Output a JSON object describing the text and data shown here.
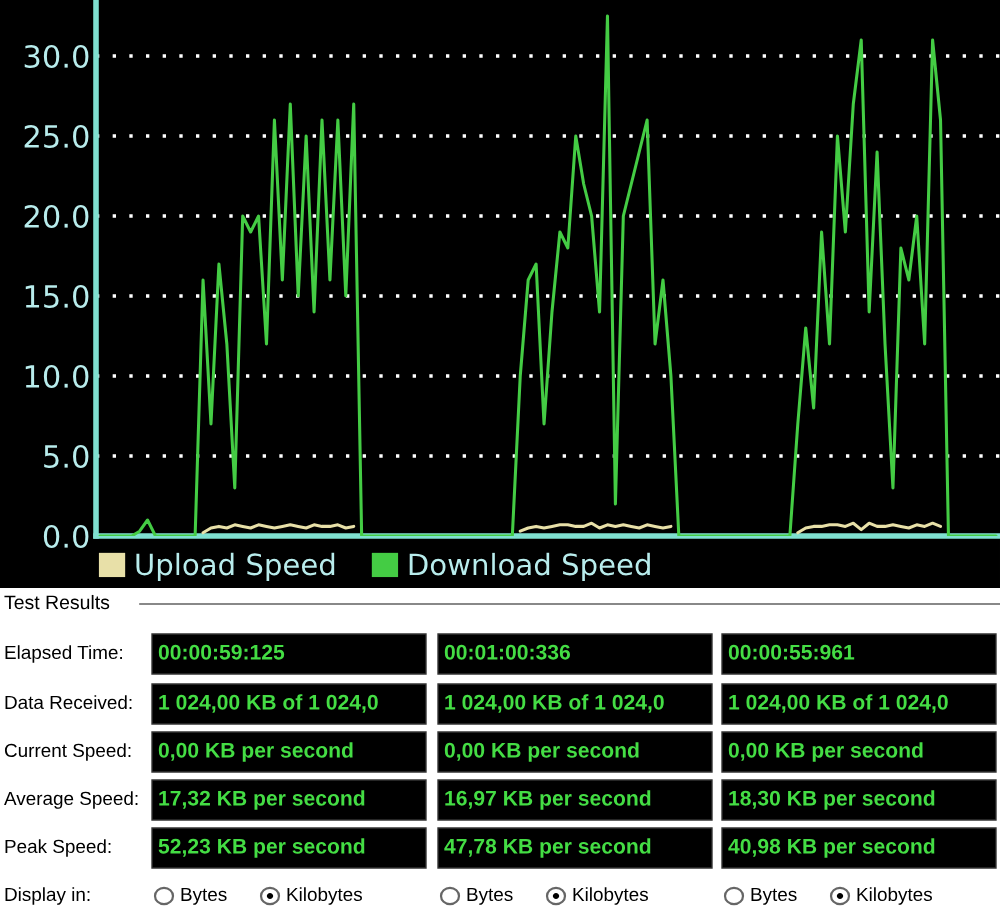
{
  "chart_data": {
    "type": "line",
    "categories": [
      null,
      null,
      null,
      null,
      null,
      null,
      null,
      null,
      null,
      null,
      null,
      null,
      null,
      null,
      null,
      null,
      null,
      null,
      null,
      null,
      null,
      null,
      null,
      null,
      null,
      null,
      null,
      null,
      null,
      null,
      null,
      null,
      null,
      null,
      null,
      null,
      null,
      null,
      null,
      null,
      null,
      null,
      null,
      null,
      null,
      null,
      null,
      null,
      null,
      null,
      null,
      null,
      null,
      null,
      null,
      null,
      null,
      null,
      null,
      null,
      null,
      null,
      null,
      null,
      null,
      null,
      null,
      null,
      null,
      null,
      null,
      null,
      null,
      null,
      null,
      null,
      null,
      null,
      null,
      null,
      null,
      null,
      null,
      null,
      null,
      null,
      null,
      null,
      null,
      null,
      null,
      null,
      null,
      null,
      null,
      null,
      null,
      null,
      null,
      null,
      null,
      null,
      null,
      null,
      null,
      null,
      null,
      null,
      null,
      null,
      null,
      null,
      null,
      null
    ],
    "series": [
      {
        "name": "Upload Speed",
        "color": "#e8e0a8",
        "values": [
          null,
          null,
          null,
          null,
          null,
          null,
          null,
          null,
          null,
          null,
          null,
          null,
          null,
          0.2,
          0.5,
          0.6,
          0.5,
          0.7,
          0.6,
          0.5,
          0.7,
          0.6,
          0.5,
          0.6,
          0.7,
          0.6,
          0.5,
          0.7,
          0.6,
          0.6,
          0.7,
          0.5,
          0.6,
          null,
          null,
          null,
          null,
          null,
          null,
          null,
          null,
          null,
          null,
          null,
          null,
          null,
          null,
          null,
          null,
          null,
          null,
          null,
          null,
          0.3,
          0.5,
          0.6,
          0.5,
          0.6,
          0.7,
          0.7,
          0.6,
          0.6,
          0.8,
          0.5,
          0.7,
          0.6,
          0.7,
          0.6,
          0.5,
          0.7,
          0.6,
          0.5,
          0.6,
          null,
          null,
          null,
          null,
          null,
          null,
          null,
          null,
          null,
          null,
          null,
          null,
          null,
          null,
          null,
          0.2,
          0.5,
          0.6,
          0.6,
          0.7,
          0.7,
          0.6,
          0.8,
          0.4,
          0.8,
          0.6,
          0.6,
          0.7,
          0.6,
          0.5,
          0.7,
          0.6,
          0.8,
          0.6,
          null,
          null,
          null,
          null,
          null,
          null,
          null
        ]
      },
      {
        "name": "Download Speed",
        "color": "#44cc44",
        "values": [
          0,
          0,
          0,
          0,
          0,
          0.3,
          1.0,
          0,
          0,
          0,
          0,
          0,
          0,
          16,
          7,
          17,
          12,
          3,
          20,
          19,
          20,
          12,
          26,
          16,
          27,
          15,
          25,
          14,
          26,
          16,
          26,
          15,
          27,
          0,
          0,
          0,
          0,
          0,
          0,
          0,
          0,
          0,
          0,
          0,
          0,
          0,
          0,
          0,
          0,
          0,
          0,
          0,
          0,
          10,
          16,
          17,
          7,
          14,
          19,
          18,
          25,
          22,
          20,
          14,
          32.5,
          2,
          20,
          22,
          24,
          26,
          12,
          16,
          10,
          0,
          0,
          0,
          0,
          0,
          0,
          0,
          0,
          0,
          0,
          0,
          0,
          0,
          0,
          0,
          7,
          13,
          8,
          19,
          12,
          25,
          19,
          27,
          31,
          14,
          24,
          12,
          3,
          18,
          16,
          20,
          12,
          31,
          26,
          0,
          0,
          0,
          0,
          0,
          0,
          0
        ]
      }
    ],
    "ylim": [
      0,
      33.5
    ],
    "yticks": [
      {
        "value": 0,
        "label": "0.0"
      },
      {
        "value": 5,
        "label": "5.0"
      },
      {
        "value": 10,
        "label": "10.0"
      },
      {
        "value": 15,
        "label": "15.0"
      },
      {
        "value": 20,
        "label": "20.0"
      },
      {
        "value": 25,
        "label": "25.0"
      },
      {
        "value": 30,
        "label": "30.0"
      }
    ],
    "grid": "y",
    "legend": "bottom",
    "annotations": [
      "Test Results",
      "Elapsed Time:",
      "Data Received:",
      "Current Speed:",
      "Average Speed:",
      "Peak Speed:",
      "Display in:",
      "00:00:59:125",
      "1 024,00 KB of 1 024,0",
      "0,00 KB per second",
      "17,32 KB per second",
      "52,23 KB per second",
      "00:01:00:336",
      "1 024,00 KB of 1 024,0",
      "0,00 KB per second",
      "16,97 KB per second",
      "47,78 KB per second",
      "00:00:55:961",
      "1 024,00 KB of 1 024,0",
      "0,00 KB per second",
      "18,30 KB per second",
      "40,98 KB per second",
      "Bytes",
      "Kilobytes",
      "Bytes",
      "Kilobytes",
      "Bytes",
      "Kilobytes"
    ]
  }
}
